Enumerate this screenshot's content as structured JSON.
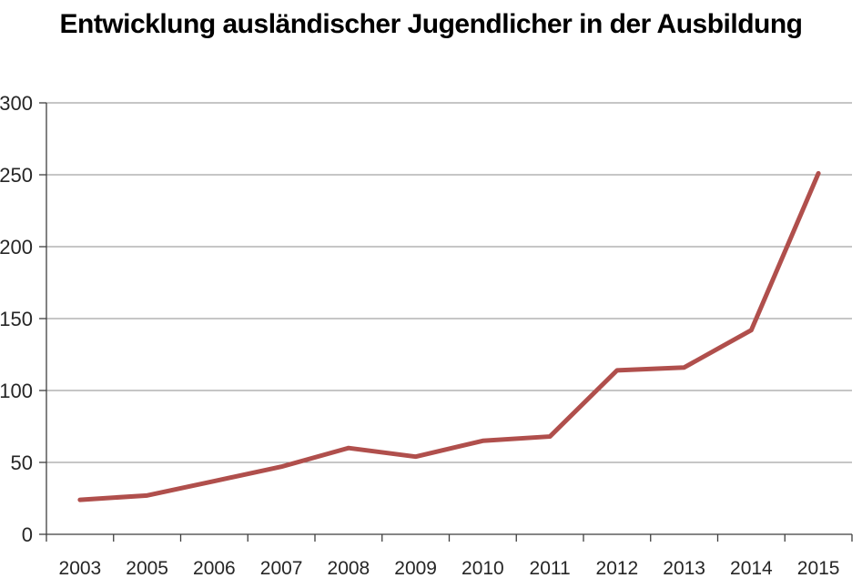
{
  "chart_data": {
    "type": "line",
    "title": "Entwicklung ausländischer Jugendlicher in der Ausbildung",
    "categories": [
      "2003",
      "2005",
      "2006",
      "2007",
      "2008",
      "2009",
      "2010",
      "2011",
      "2012",
      "2013",
      "2014",
      "2015"
    ],
    "series": [
      {
        "name": "",
        "values": [
          24,
          27,
          37,
          47,
          60,
          54,
          65,
          68,
          114,
          116,
          142,
          251
        ]
      }
    ],
    "xlabel": "",
    "ylabel": "",
    "ylim": [
      0,
      300
    ],
    "yticks": [
      0,
      50,
      100,
      150,
      200,
      250,
      300
    ],
    "grid": true,
    "legend": "none"
  },
  "colors": {
    "line": "#B04F4C",
    "gridline": "#8C8C8C",
    "axis": "#3F3F3F",
    "tick_label": "#262626",
    "title": "#000000",
    "background": "#FFFFFF"
  }
}
